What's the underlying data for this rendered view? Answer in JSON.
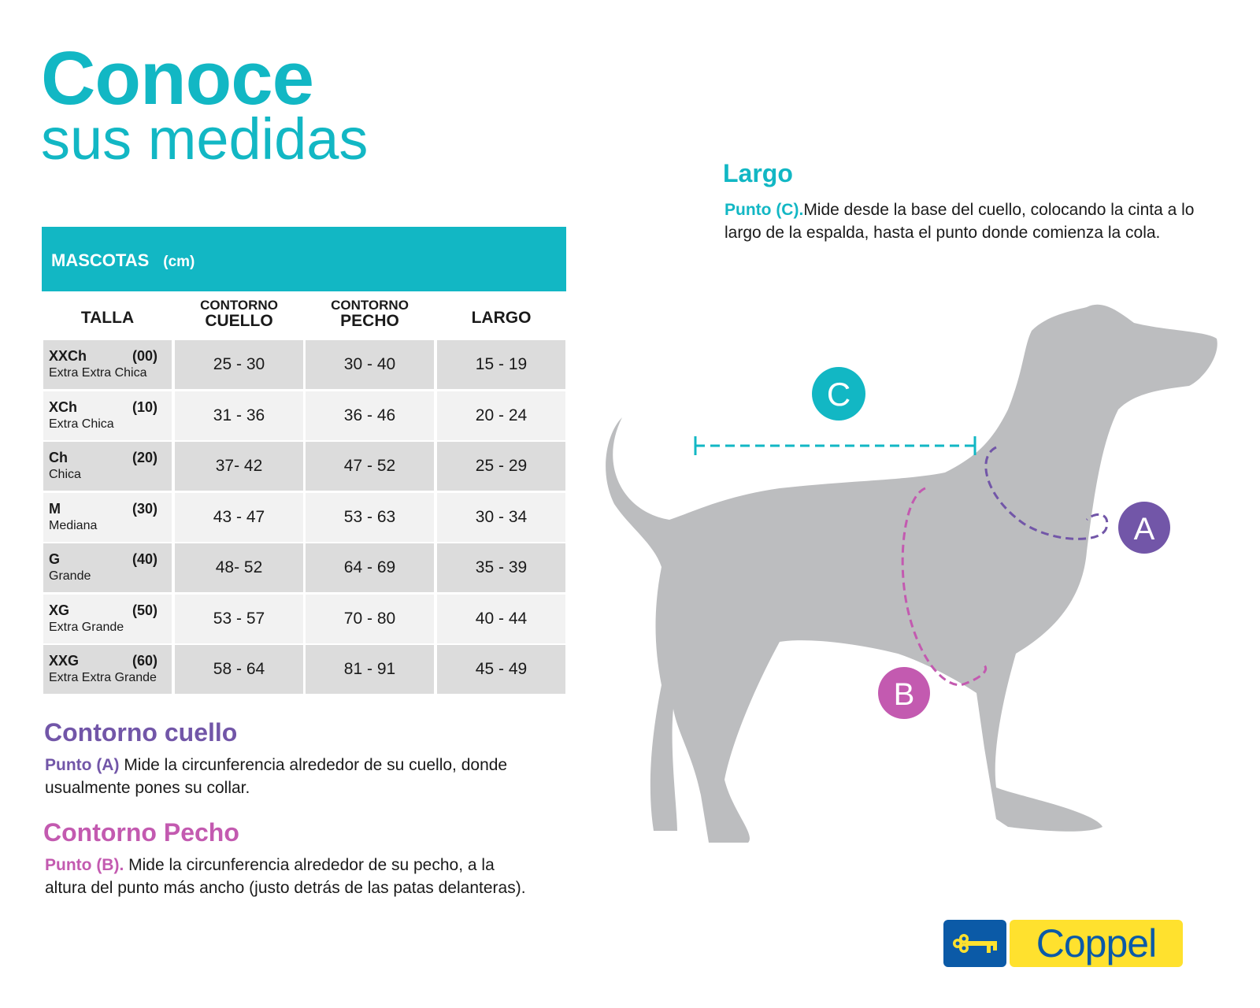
{
  "title": {
    "line1": "Conoce",
    "line2": "sus medidas"
  },
  "table": {
    "heading": "MASCOTAS",
    "unit": "(cm)",
    "columns": [
      {
        "top": "",
        "main": "TALLA"
      },
      {
        "top": "CONTORNO",
        "main": "CUELLO"
      },
      {
        "top": "CONTORNO",
        "main": "PECHO"
      },
      {
        "top": "",
        "main": "LARGO"
      }
    ],
    "rows": [
      {
        "code": "XXCh",
        "num": "(00)",
        "name": "Extra Extra Chica",
        "cuello": "25 - 30",
        "pecho": "30 - 40",
        "largo": "15 - 19"
      },
      {
        "code": "XCh",
        "num": "(10)",
        "name": "Extra Chica",
        "cuello": "31 - 36",
        "pecho": "36 - 46",
        "largo": "20 - 24"
      },
      {
        "code": "Ch",
        "num": "(20)",
        "name": "Chica",
        "cuello": "37- 42",
        "pecho": "47 - 52",
        "largo": "25 - 29"
      },
      {
        "code": "M",
        "num": "(30)",
        "name": "Mediana",
        "cuello": "43 - 47",
        "pecho": "53 - 63",
        "largo": "30 - 34"
      },
      {
        "code": "G",
        "num": "(40)",
        "name": "Grande",
        "cuello": "48- 52",
        "pecho": "64 - 69",
        "largo": "35 - 39"
      },
      {
        "code": "XG",
        "num": "(50)",
        "name": "Extra Grande",
        "cuello": "53 - 57",
        "pecho": "70 - 80",
        "largo": "40 - 44"
      },
      {
        "code": "XXG",
        "num": "(60)",
        "name": "Extra Extra Grande",
        "cuello": "58 - 64",
        "pecho": "81 - 91",
        "largo": "45 - 49"
      }
    ]
  },
  "sections": {
    "cuello": {
      "title": "Contorno cuello",
      "label": "Punto (A)",
      "text": " Mide la circunferencia alrededor de su cuello, donde usualmente pones su collar."
    },
    "pecho": {
      "title": "Contorno Pecho",
      "label": "Punto (B).",
      "text": " Mide la circunferencia alrededor de su pecho, a la altura del punto más ancho (justo detrás de las patas delanteras)."
    },
    "largo": {
      "title": "Largo",
      "label": "Punto (C).",
      "text": "Mide desde la base del cuello, colocando la cinta a lo largo de la espalda, hasta el punto donde comienza la cola."
    }
  },
  "markers": {
    "a": "A",
    "b": "B",
    "c": "C"
  },
  "logo": {
    "text": "Coppel"
  },
  "colors": {
    "teal": "#12b7c4",
    "purple": "#7256a8",
    "pink": "#c35ab0",
    "dog": "#bcbdbf",
    "coppel_blue": "#0b5aa7",
    "coppel_yellow": "#ffe12e"
  }
}
